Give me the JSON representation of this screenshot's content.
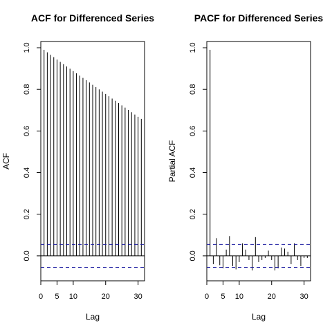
{
  "chart_data": [
    {
      "type": "bar",
      "title": "ACF for Differenced Series",
      "xlabel": "Lag",
      "ylabel": "ACF",
      "xlim": [
        0,
        32
      ],
      "ylim": [
        -0.12,
        1.03
      ],
      "x_ticks": [
        0,
        5,
        10,
        20,
        30
      ],
      "y_ticks": [
        0.0,
        0.2,
        0.4,
        0.6,
        0.8,
        1.0
      ],
      "y_tick_labels": [
        "0.0",
        "0.2",
        "0.4",
        "0.6",
        "0.8",
        "1.0"
      ],
      "confidence_band": [
        -0.055,
        0.055
      ],
      "zero_line": true,
      "lags": [
        0,
        1,
        2,
        3,
        4,
        5,
        6,
        7,
        8,
        9,
        10,
        11,
        12,
        13,
        14,
        15,
        16,
        17,
        18,
        19,
        20,
        21,
        22,
        23,
        24,
        25,
        26,
        27,
        28,
        29,
        30,
        31
      ],
      "values": [
        1.0,
        0.99,
        0.978,
        0.966,
        0.955,
        0.943,
        0.932,
        0.921,
        0.91,
        0.899,
        0.888,
        0.877,
        0.866,
        0.855,
        0.844,
        0.833,
        0.822,
        0.811,
        0.8,
        0.789,
        0.778,
        0.767,
        0.756,
        0.745,
        0.734,
        0.723,
        0.712,
        0.701,
        0.69,
        0.679,
        0.668,
        0.658
      ]
    },
    {
      "type": "bar",
      "title": "PACF for Differenced Series",
      "xlabel": "Lag",
      "ylabel": "Partial ACF",
      "xlim": [
        0,
        32
      ],
      "ylim": [
        -0.12,
        1.03
      ],
      "x_ticks": [
        0,
        5,
        10,
        20,
        30
      ],
      "y_ticks": [
        0.0,
        0.2,
        0.4,
        0.6,
        0.8,
        1.0
      ],
      "y_tick_labels": [
        "0.0",
        "0.2",
        "0.4",
        "0.6",
        "0.8",
        "1.0"
      ],
      "confidence_band": [
        -0.055,
        0.055
      ],
      "zero_line": true,
      "lags": [
        1,
        2,
        3,
        4,
        5,
        6,
        7,
        8,
        9,
        10,
        11,
        12,
        13,
        14,
        15,
        16,
        17,
        18,
        19,
        20,
        21,
        22,
        23,
        24,
        25,
        26,
        27,
        28,
        29,
        30,
        31
      ],
      "values": [
        0.99,
        -0.04,
        0.085,
        -0.045,
        -0.06,
        0.03,
        0.095,
        -0.05,
        -0.065,
        -0.03,
        0.06,
        0.03,
        -0.02,
        -0.07,
        0.09,
        -0.03,
        -0.02,
        -0.01,
        0.025,
        -0.02,
        -0.07,
        -0.06,
        0.04,
        0.035,
        0.02,
        -0.04,
        0.06,
        -0.02,
        -0.05,
        -0.01,
        -0.01
      ]
    }
  ],
  "colors": {
    "spike": "#000000",
    "band": "#1a1aa0",
    "axis": "#000000"
  }
}
